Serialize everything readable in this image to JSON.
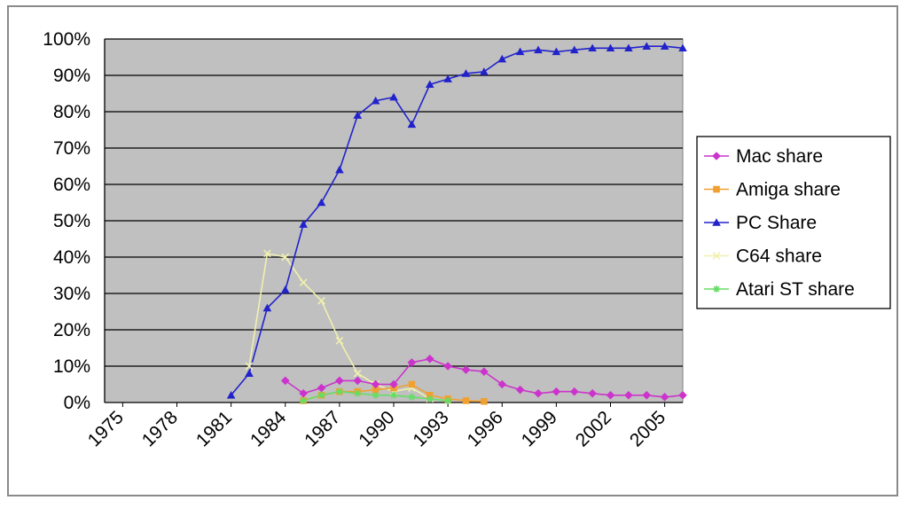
{
  "chart_data": {
    "type": "line",
    "title": "",
    "xlabel": "",
    "ylabel": "",
    "x_ticks": [
      "1975",
      "1978",
      "1981",
      "1984",
      "1987",
      "1990",
      "1993",
      "1996",
      "1999",
      "2002",
      "2005"
    ],
    "y_ticks": [
      "0%",
      "10%",
      "20%",
      "30%",
      "40%",
      "50%",
      "60%",
      "70%",
      "80%",
      "90%",
      "100%"
    ],
    "xlim": [
      1974,
      2006
    ],
    "ylim": [
      0,
      100
    ],
    "grid": true,
    "legend_position": "right",
    "plot_background": "#c0c0c0",
    "series": [
      {
        "name": "Mac share",
        "color": "#cc33cc",
        "marker": "diamond",
        "points": [
          [
            1984,
            6
          ],
          [
            1985,
            2.5
          ],
          [
            1986,
            4
          ],
          [
            1987,
            6
          ],
          [
            1988,
            6
          ],
          [
            1989,
            5
          ],
          [
            1990,
            5
          ],
          [
            1991,
            11
          ],
          [
            1992,
            12
          ],
          [
            1993,
            10
          ],
          [
            1994,
            9
          ],
          [
            1995,
            8.5
          ],
          [
            1996,
            5
          ],
          [
            1997,
            3.5
          ],
          [
            1998,
            2.5
          ],
          [
            1999,
            3
          ],
          [
            2000,
            3
          ],
          [
            2001,
            2.5
          ],
          [
            2002,
            2
          ],
          [
            2003,
            2
          ],
          [
            2004,
            2
          ],
          [
            2005,
            1.5
          ],
          [
            2006,
            2
          ]
        ]
      },
      {
        "name": "Amiga share",
        "color": "#f0a030",
        "marker": "square",
        "points": [
          [
            1985,
            0.5
          ],
          [
            1986,
            2
          ],
          [
            1987,
            3
          ],
          [
            1988,
            3
          ],
          [
            1989,
            3.5
          ],
          [
            1990,
            4
          ],
          [
            1991,
            5
          ],
          [
            1992,
            2
          ],
          [
            1993,
            1
          ],
          [
            1994,
            0.5
          ],
          [
            1995,
            0.3
          ]
        ]
      },
      {
        "name": "PC Share",
        "color": "#2222cc",
        "marker": "triangle",
        "points": [
          [
            1981,
            2
          ],
          [
            1982,
            8
          ],
          [
            1983,
            26
          ],
          [
            1984,
            31
          ],
          [
            1985,
            49
          ],
          [
            1986,
            55
          ],
          [
            1987,
            64
          ],
          [
            1988,
            79
          ],
          [
            1989,
            83
          ],
          [
            1990,
            84
          ],
          [
            1991,
            76.5
          ],
          [
            1992,
            87.5
          ],
          [
            1993,
            89
          ],
          [
            1994,
            90.5
          ],
          [
            1995,
            91
          ],
          [
            1996,
            94.5
          ],
          [
            1997,
            96.5
          ],
          [
            1998,
            97
          ],
          [
            1999,
            96.5
          ],
          [
            2000,
            97
          ],
          [
            2001,
            97.5
          ],
          [
            2002,
            97.5
          ],
          [
            2003,
            97.5
          ],
          [
            2004,
            98
          ],
          [
            2005,
            98
          ],
          [
            2006,
            97.5
          ]
        ]
      },
      {
        "name": "C64 share",
        "color": "#f0f0b0",
        "marker": "x",
        "points": [
          [
            1982,
            10
          ],
          [
            1983,
            41
          ],
          [
            1984,
            40
          ],
          [
            1985,
            33
          ],
          [
            1986,
            28
          ],
          [
            1987,
            17
          ],
          [
            1988,
            8
          ],
          [
            1989,
            5
          ],
          [
            1990,
            3
          ],
          [
            1991,
            4
          ],
          [
            1992,
            1
          ],
          [
            1993,
            0.5
          ]
        ]
      },
      {
        "name": "Atari ST share",
        "color": "#66dd66",
        "marker": "star",
        "points": [
          [
            1985,
            0.5
          ],
          [
            1986,
            2
          ],
          [
            1987,
            3
          ],
          [
            1988,
            2.5
          ],
          [
            1989,
            2
          ],
          [
            1990,
            2
          ],
          [
            1991,
            1.5
          ],
          [
            1992,
            1
          ],
          [
            1993,
            0.5
          ]
        ]
      }
    ]
  }
}
